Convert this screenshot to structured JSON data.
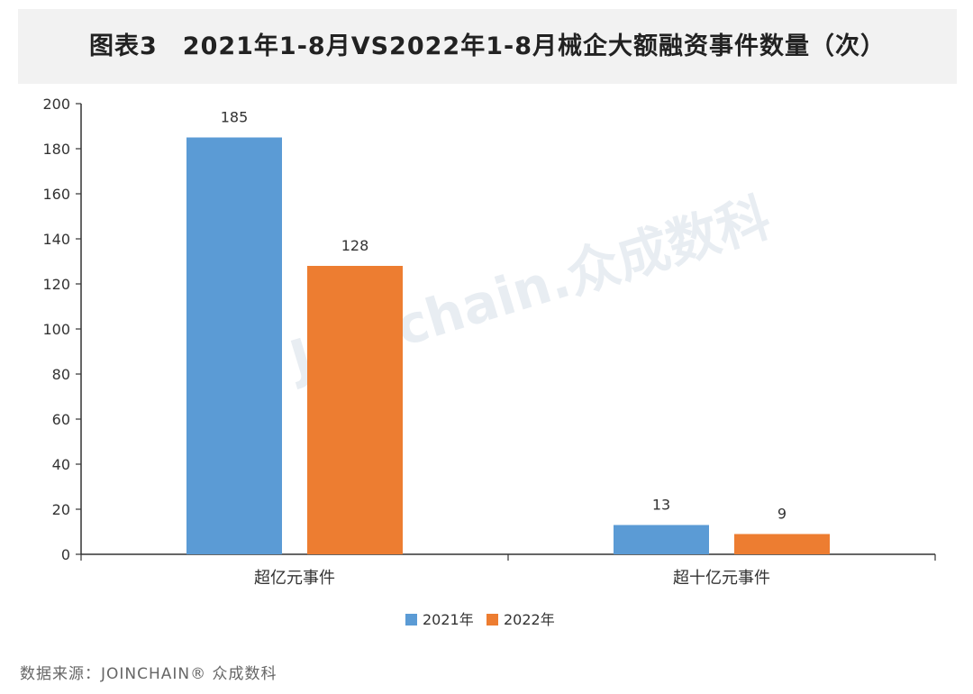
{
  "chart_data": {
    "type": "bar",
    "title": "图表3　2021年1-8月VS2022年1-8月械企大额融资事件数量（次）",
    "categories": [
      "超亿元事件",
      "超十亿元事件"
    ],
    "series": [
      {
        "name": "2021年",
        "values": [
          185,
          13
        ],
        "color": "#5b9bd5"
      },
      {
        "name": "2022年",
        "values": [
          128,
          9
        ],
        "color": "#ed7d31"
      }
    ],
    "ylim": [
      0,
      200
    ],
    "yticks": [
      0,
      20,
      40,
      60,
      80,
      100,
      120,
      140,
      160,
      180,
      200
    ],
    "grid": false,
    "legend_position": "bottom",
    "data_labels": true
  },
  "watermark": {
    "text": "Joinchain.众成数科"
  },
  "footer": {
    "source": "数据来源：JOINCHAIN® 众成数科"
  }
}
